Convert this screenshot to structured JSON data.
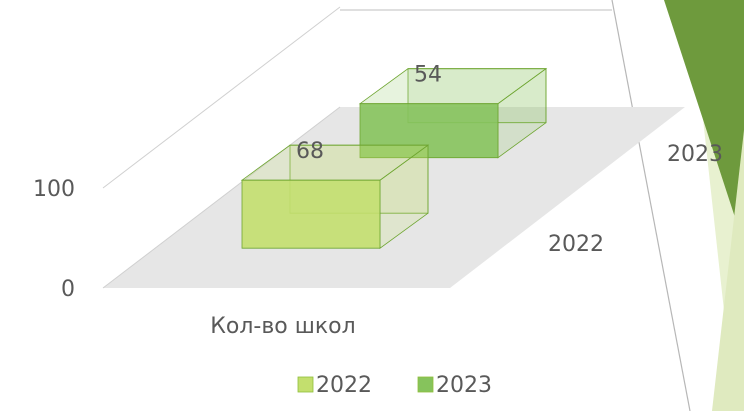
{
  "chart_data": {
    "type": "bar3d",
    "categories": [
      "Кол-во школ"
    ],
    "series": [
      {
        "name": "2022",
        "color": "#c3df6e",
        "values": [
          68
        ]
      },
      {
        "name": "2023",
        "color": "#86c35c",
        "values": [
          54
        ]
      }
    ],
    "ylim": [
      0,
      100
    ],
    "yticks": [
      0,
      100
    ],
    "grid": true,
    "legend": "bottom"
  }
}
